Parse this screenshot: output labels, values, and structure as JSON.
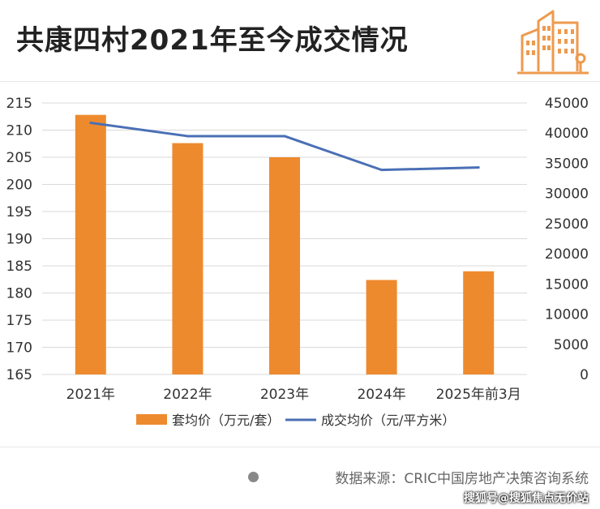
{
  "title": "共康四村2021年至今成交情况",
  "colors": {
    "bar": "#ee8a2e",
    "line": "#4a6fb5",
    "logo": "#ee9a4e",
    "text": "#333333"
  },
  "logo_icon": "buildings-icon",
  "chart_data": {
    "type": "bar",
    "categories": [
      "2021年",
      "2022年",
      "2023年",
      "2024年",
      "2025年前3月"
    ],
    "series": [
      {
        "name": "套均价（万元/套）",
        "type": "bar",
        "axis": "left",
        "values": [
          212.8,
          207.6,
          205.0,
          182.4,
          184.0
        ]
      },
      {
        "name": "成交均价（元/平方米）",
        "type": "line",
        "axis": "right",
        "values": [
          41700,
          39500,
          39500,
          33900,
          34300
        ]
      }
    ],
    "y_left": {
      "min": 165,
      "max": 215,
      "ticks": [
        "165",
        "170",
        "175",
        "180",
        "185",
        "190",
        "195",
        "200",
        "205",
        "210",
        "215"
      ]
    },
    "y_right": {
      "min": 0,
      "max": 45000,
      "ticks": [
        "0",
        "5000",
        "10000",
        "15000",
        "20000",
        "25000",
        "30000",
        "35000",
        "40000",
        "45000"
      ]
    },
    "grid": true,
    "legend": "bottom"
  },
  "source_text": "数据来源：CRIC中国房地产决策咨询系统",
  "credit_text": "搜狐号@搜狐焦点无价站"
}
